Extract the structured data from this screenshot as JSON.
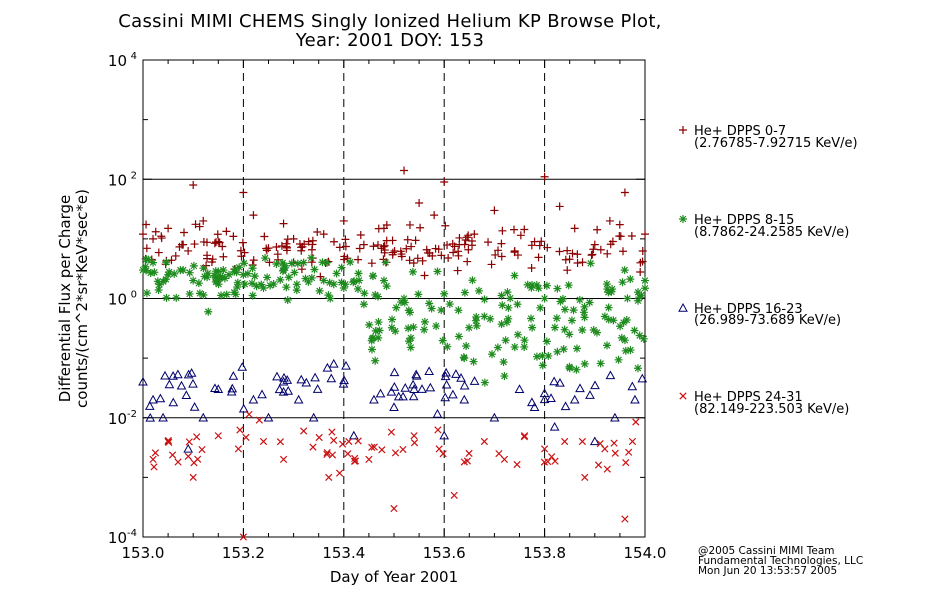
{
  "chart_data": {
    "type": "scatter",
    "title": "Cassini MIMI CHEMS Singly Ionized Helium KP Browse Plot,",
    "subtitle": "Year: 2001 DOY: 153",
    "xlabel": "Day of Year 2001",
    "ylabel": "Differential Flux per Charge",
    "ylabel2": "counts/(cm^2*sr*KeV*sec*e)",
    "xlim": [
      153.0,
      154.0
    ],
    "ylim": [
      0.0001,
      10000
    ],
    "yscale": "log",
    "x_ticks": [
      "153.0",
      "153.2",
      "153.4",
      "153.6",
      "153.8",
      "154.0"
    ],
    "y_ticks": [
      {
        "base": "10",
        "exp": "-4",
        "value": 0.0001
      },
      {
        "base": "10",
        "exp": "-2",
        "value": 0.01
      },
      {
        "base": "10",
        "exp": "0",
        "value": 1
      },
      {
        "base": "10",
        "exp": "2",
        "value": 100
      },
      {
        "base": "10",
        "exp": "4",
        "value": 10000
      }
    ],
    "reference_lines_y": [
      0.01,
      1,
      100
    ],
    "vertical_dashed_x": [
      153.2,
      153.4,
      153.6,
      153.8
    ],
    "legend_position": "right",
    "series": [
      {
        "name": "He+ DPPS 0-7",
        "range": "(2.76785-7.92715 KeV/e)",
        "marker": "plus",
        "color": "#8b0000",
        "level_log10": 0.8,
        "spread": 0.35,
        "x": [
          153.0,
          153.02,
          153.05,
          153.08,
          153.1,
          153.12,
          153.15,
          153.18,
          153.2,
          153.22,
          153.25,
          153.28,
          153.3,
          153.33,
          153.36,
          153.4,
          153.44,
          153.48,
          153.52,
          153.55,
          153.58,
          153.6,
          153.63,
          153.66,
          153.7,
          153.74,
          153.78,
          153.8,
          153.83,
          153.86,
          153.9,
          153.93,
          153.96,
          154.0
        ],
        "y": [
          12,
          10,
          15,
          8,
          80,
          20,
          9,
          11,
          60,
          25,
          7,
          18,
          10,
          9,
          12,
          20,
          8,
          15,
          140,
          40,
          25,
          90,
          8,
          12,
          30,
          6,
          9,
          110,
          35,
          15,
          8,
          20,
          60,
          12
        ]
      },
      {
        "name": "He+ DPPS 8-15",
        "range": "(8.7862-24.2585 KeV/e)",
        "marker": "asterisk",
        "color": "#1e8b1e",
        "level_log10": 0.35,
        "spread": 0.3,
        "x": [
          153.0,
          153.02,
          153.05,
          153.08,
          153.1,
          153.13,
          153.16,
          153.2,
          153.24,
          153.28,
          153.32,
          153.36,
          153.4,
          153.44,
          153.48,
          153.52,
          153.56,
          153.6,
          153.64,
          153.68,
          153.72,
          153.76,
          153.8,
          153.84,
          153.88,
          153.92,
          153.96,
          154.0
        ],
        "y": [
          3,
          4,
          2.5,
          3,
          2,
          0.6,
          3,
          2.5,
          1.5,
          3,
          4,
          2,
          1.5,
          0.8,
          2,
          1,
          0.3,
          1.2,
          0.1,
          0.5,
          0.05,
          0.2,
          1,
          0.3,
          0.08,
          0.5,
          0.2,
          2
        ]
      },
      {
        "name": "He+ DPPS 16-23",
        "range": "(26.989-73.689 KeV/e)",
        "marker": "triangle",
        "color": "#00006b",
        "level_log10": -1.5,
        "spread": 0.35,
        "x": [
          153.0,
          153.02,
          153.04,
          153.06,
          153.09,
          153.12,
          153.15,
          153.18,
          153.22,
          153.25,
          153.28,
          153.31,
          153.34,
          153.38,
          153.42,
          153.46,
          153.5,
          153.54,
          153.57,
          153.6,
          153.64,
          153.7,
          153.75,
          153.78,
          153.82,
          153.86,
          153.9,
          153.94,
          153.98
        ],
        "y": [
          0.04,
          0.02,
          0.01,
          0.05,
          0.003,
          0.01,
          0.03,
          0.05,
          0.02,
          0.01,
          0.04,
          0.02,
          0.01,
          0.08,
          0.005,
          0.02,
          0.015,
          0.03,
          0.06,
          0.005,
          0.02,
          0.01,
          0.03,
          0.015,
          0.007,
          0.02,
          0.004,
          0.01,
          0.02
        ]
      },
      {
        "name": "He+ DPPS 24-31",
        "range": "(82.149-223.503 KeV/e)",
        "marker": "cross",
        "color": "#cc1111",
        "level_log10": -2.5,
        "spread": 0.35,
        "x": [
          153.02,
          153.05,
          153.1,
          153.15,
          153.19,
          153.2,
          153.24,
          153.28,
          153.32,
          153.37,
          153.41,
          153.45,
          153.5,
          153.54,
          153.59,
          153.62,
          153.68,
          153.72,
          153.76,
          153.8,
          153.84,
          153.88,
          153.92,
          153.96
        ],
        "y": [
          0.002,
          0.004,
          0.001,
          0.005,
          0.003,
          0.0001,
          0.004,
          0.002,
          0.006,
          0.001,
          0.004,
          0.002,
          0.0003,
          0.005,
          0.003,
          0.0005,
          0.004,
          0.002,
          0.005,
          0.003,
          0.004,
          0.001,
          0.003,
          0.0002
        ]
      }
    ]
  },
  "credits": {
    "line1": "@2005 Cassini MIMI Team",
    "line2": "Fundamental Technologies, LLC",
    "line3": "Mon Jun 20 13:53:57 2005"
  }
}
